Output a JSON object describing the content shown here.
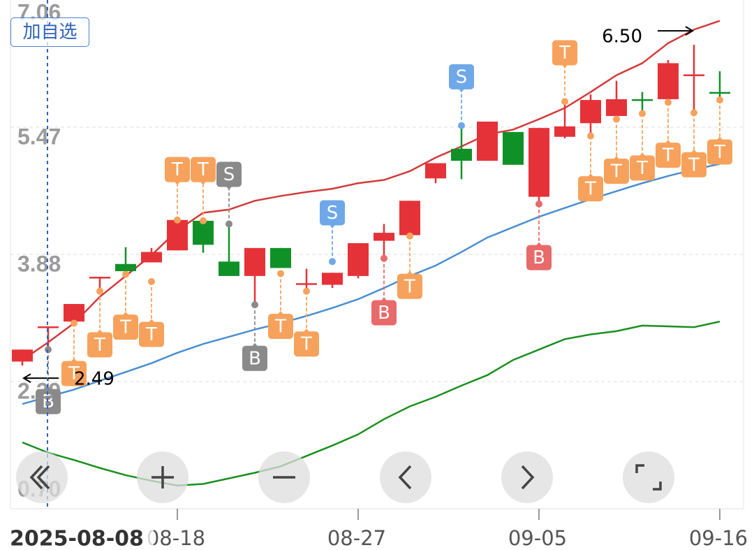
{
  "chart_data": {
    "type": "candlestick",
    "categories": [
      null,
      null,
      null,
      null,
      null,
      null,
      "08-18",
      null,
      null,
      null,
      null,
      null,
      null,
      "08-27",
      null,
      null,
      null,
      null,
      null,
      null,
      "09-05",
      null,
      null,
      null,
      null,
      null,
      null,
      "09-16"
    ],
    "crosshair_label": "2025-08-08",
    "open": [
      2.54,
      2.96,
      3.04,
      3.58,
      3.76,
      3.78,
      3.93,
      4.3,
      3.79,
      3.61,
      3.96,
      3.51,
      3.5,
      3.61,
      4.05,
      4.12,
      4.83,
      5.2,
      5.05,
      5.41,
      4.6,
      5.35,
      5.52,
      5.61,
      5.82,
      5.82,
      6.12,
      5.91
    ],
    "high": [
      2.69,
      2.98,
      3.26,
      3.6,
      3.97,
      3.96,
      4.33,
      4.3,
      4.26,
      3.96,
      3.96,
      3.7,
      3.65,
      4.02,
      4.26,
      4.55,
      5.02,
      5.49,
      5.54,
      5.41,
      5.46,
      5.79,
      5.88,
      6.05,
      5.91,
      6.31,
      6.5,
      6.17
    ],
    "low": [
      2.49,
      2.69,
      3.02,
      3.43,
      3.64,
      3.78,
      3.93,
      3.9,
      3.61,
      3.26,
      3.71,
      3.41,
      3.46,
      3.58,
      3.83,
      4.12,
      4.77,
      4.82,
      5.05,
      5.0,
      4.51,
      5.33,
      5.36,
      5.61,
      5.64,
      5.78,
      5.65,
      5.81
    ],
    "close": [
      2.69,
      2.98,
      3.26,
      3.6,
      3.67,
      3.91,
      4.31,
      4.0,
      3.61,
      3.96,
      3.71,
      3.52,
      3.65,
      4.02,
      4.15,
      4.55,
      5.02,
      5.05,
      5.54,
      5.0,
      5.46,
      5.48,
      5.81,
      5.82,
      5.81,
      6.27,
      6.13,
      5.9
    ],
    "up_color": "#e53238",
    "down_color": "#0f9128",
    "lines": [
      {
        "color": "#d23a3a",
        "values": [
          2.56,
          2.78,
          3.02,
          3.35,
          3.61,
          3.87,
          4.18,
          4.4,
          4.44,
          4.55,
          4.61,
          4.66,
          4.7,
          4.77,
          4.81,
          4.92,
          5.09,
          5.23,
          5.38,
          5.44,
          5.57,
          5.71,
          5.91,
          6.12,
          6.27,
          6.52,
          6.69,
          6.8
        ]
      },
      {
        "color": "#4a8ed0",
        "values": [
          2.01,
          2.1,
          2.19,
          2.3,
          2.41,
          2.52,
          2.65,
          2.76,
          2.85,
          2.94,
          3.02,
          3.11,
          3.21,
          3.32,
          3.46,
          3.61,
          3.74,
          3.91,
          4.09,
          4.22,
          4.35,
          4.46,
          4.57,
          4.67,
          4.77,
          4.86,
          4.94,
          5.01
        ]
      },
      {
        "color": "#1a8f1f",
        "values": [
          1.53,
          1.4,
          1.31,
          1.21,
          1.12,
          1.05,
          0.99,
          1.01,
          1.08,
          1.15,
          1.23,
          1.36,
          1.49,
          1.63,
          1.82,
          1.98,
          2.1,
          2.24,
          2.37,
          2.56,
          2.69,
          2.82,
          2.88,
          2.92,
          2.99,
          2.98,
          2.97,
          3.04
        ]
      }
    ],
    "signals": [
      {
        "index": 1,
        "text": "B",
        "color": "#8a8a8a",
        "price": 2.69,
        "at": 2.04
      },
      {
        "index": 2,
        "text": "T",
        "color": "#f7a25c",
        "price": 3.02,
        "at": 2.39
      },
      {
        "index": 3,
        "text": "T",
        "color": "#f7a25c",
        "price": 3.42,
        "at": 2.75
      },
      {
        "index": 4,
        "text": "T",
        "color": "#f7a25c",
        "price": 3.63,
        "at": 2.97
      },
      {
        "index": 5,
        "text": "T",
        "color": "#f7a25c",
        "price": 3.54,
        "at": 2.88
      },
      {
        "index": 6,
        "text": "T",
        "color": "#f7a25c",
        "price": 4.31,
        "at": 4.94
      },
      {
        "index": 7,
        "text": "T",
        "color": "#f7a25c",
        "price": 4.3,
        "at": 4.94
      },
      {
        "index": 8,
        "text": "S",
        "color": "#8a8a8a",
        "price": 4.26,
        "at": 4.88
      },
      {
        "index": 9,
        "text": "B",
        "color": "#8a8a8a",
        "price": 3.25,
        "at": 2.58
      },
      {
        "index": 10,
        "text": "T",
        "color": "#f7a25c",
        "price": 3.64,
        "at": 2.98
      },
      {
        "index": 11,
        "text": "T",
        "color": "#f7a25c",
        "price": 3.42,
        "at": 2.76
      },
      {
        "index": 12,
        "text": "S",
        "color": "#6fa8e8",
        "price": 3.79,
        "at": 4.4
      },
      {
        "index": 14,
        "text": "B",
        "color": "#e86a6a",
        "price": 3.83,
        "at": 3.15
      },
      {
        "index": 15,
        "text": "T",
        "color": "#f7a25c",
        "price": 4.11,
        "at": 3.48
      },
      {
        "index": 17,
        "text": "S",
        "color": "#6fa8e8",
        "price": 5.49,
        "at": 6.1
      },
      {
        "index": 20,
        "text": "B",
        "color": "#e86a6a",
        "price": 4.51,
        "at": 3.84
      },
      {
        "index": 21,
        "text": "T",
        "color": "#f7a25c",
        "price": 5.79,
        "at": 6.4
      },
      {
        "index": 22,
        "text": "T",
        "color": "#f7a25c",
        "price": 5.36,
        "at": 4.7
      },
      {
        "index": 23,
        "text": "T",
        "color": "#f7a25c",
        "price": 5.57,
        "at": 4.92
      },
      {
        "index": 24,
        "text": "T",
        "color": "#f7a25c",
        "price": 5.64,
        "at": 4.96
      },
      {
        "index": 25,
        "text": "T",
        "color": "#f7a25c",
        "price": 5.78,
        "at": 5.12
      },
      {
        "index": 26,
        "text": "T",
        "color": "#f7a25c",
        "price": 5.65,
        "at": 5.0
      },
      {
        "index": 27,
        "text": "T",
        "color": "#f7a25c",
        "price": 5.81,
        "at": 5.16
      }
    ],
    "annotations": [
      {
        "label": "6.50",
        "value": 6.5
      },
      {
        "label": "2.49",
        "value": 2.49
      }
    ],
    "ylim": [
      0.7,
      7.06
    ],
    "yticks": [
      {
        "value": 0.7,
        "label": "0.70"
      },
      2.29,
      3.88,
      5.47,
      7.06
    ],
    "grid": true
  },
  "button": "加自选"
}
